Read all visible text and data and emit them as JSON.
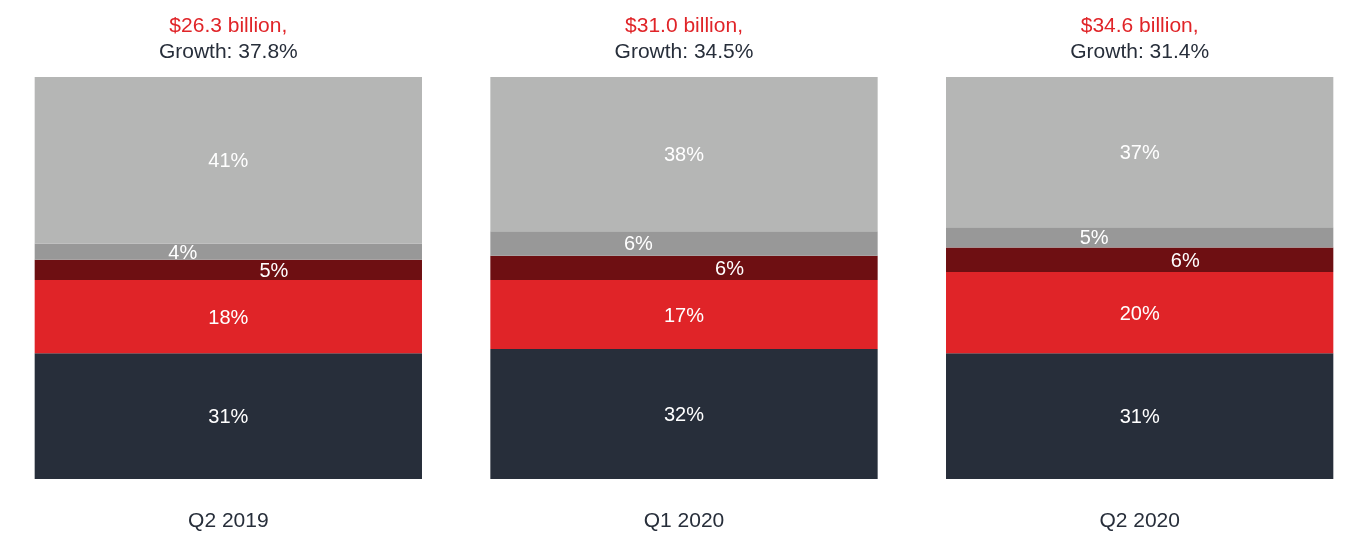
{
  "chart_data": {
    "type": "bar",
    "stacked": true,
    "categories": [
      "Q2 2019",
      "Q1 2020",
      "Q2 2020"
    ],
    "series": [
      {
        "color": "#272e3a",
        "values": [
          31,
          32,
          31
        ],
        "value_labels": [
          "31%",
          "32%",
          "31%"
        ]
      },
      {
        "color": "#e02428",
        "values": [
          18,
          17,
          20
        ],
        "value_labels": [
          "18%",
          "17%",
          "20%"
        ]
      },
      {
        "color": "#6e0f12",
        "values": [
          5,
          6,
          6
        ],
        "value_labels": [
          "5%",
          "6%",
          "6%"
        ]
      },
      {
        "color": "#989898",
        "values": [
          4,
          6,
          5
        ],
        "value_labels": [
          "4%",
          "6%",
          "5%"
        ]
      },
      {
        "color": "#b5b6b5",
        "values": [
          41,
          38,
          37
        ],
        "value_labels": [
          "41%",
          "38%",
          "37%"
        ]
      }
    ],
    "annotations": [
      {
        "text": "$26.3 billion,",
        "x": "Q2 2019",
        "y": 99
      },
      {
        "text": "Growth: 37.8%",
        "x": "Q2 2019",
        "y": 99
      },
      {
        "text": "$31.0 billion,",
        "x": "Q1 2020",
        "y": 99
      },
      {
        "text": "Growth: 34.5%",
        "x": "Q1 2020",
        "y": 99
      },
      {
        "text": "$34.6 billion,",
        "x": "Q2 2020",
        "y": 99
      },
      {
        "text": "Growth: 31.4%",
        "x": "Q2 2020",
        "y": 99
      }
    ],
    "grid": false
  }
}
